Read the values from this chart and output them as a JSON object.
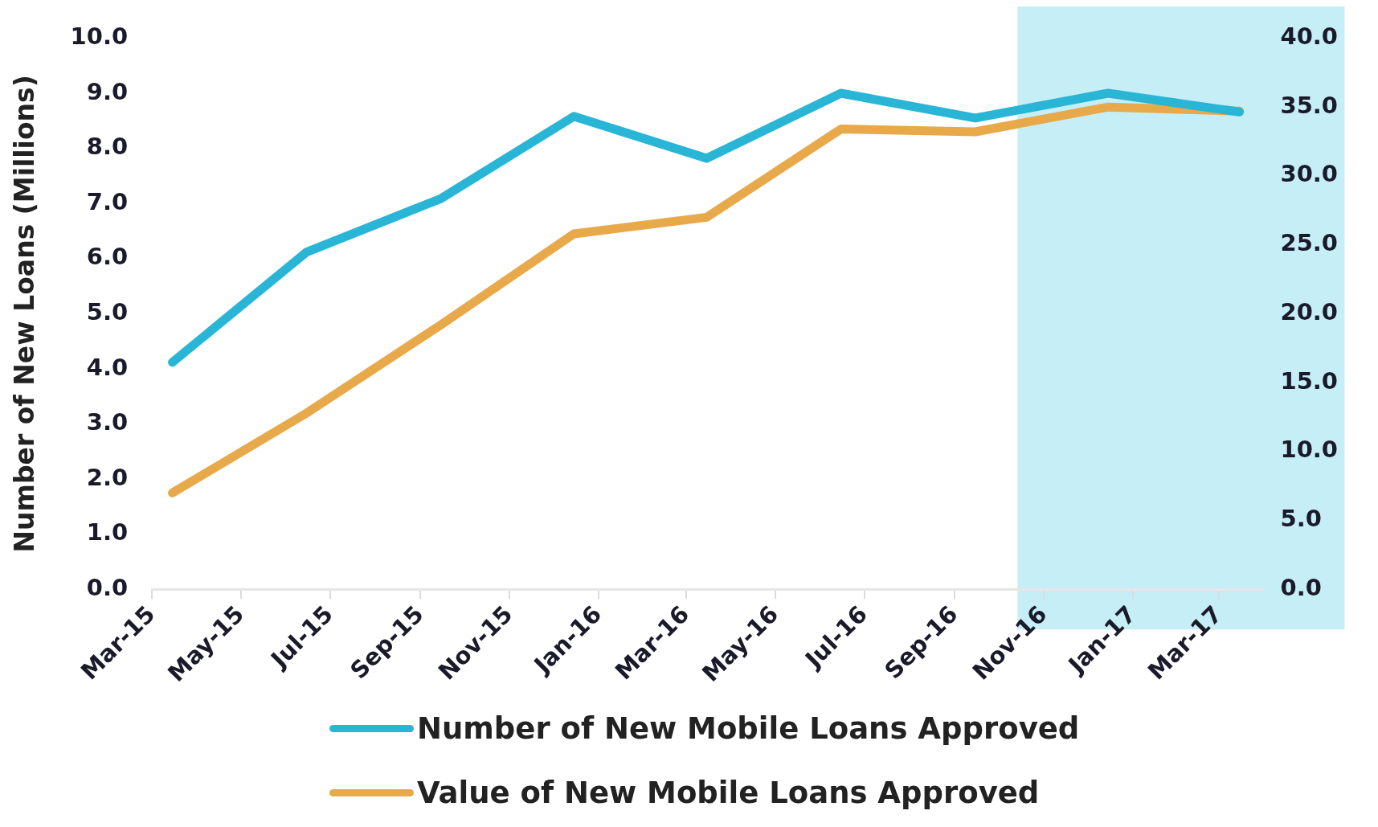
{
  "chart_data": {
    "type": "line",
    "ylabel": "Number of New Loans (Millions)",
    "x": [
      "2015-03-15",
      "2015-06-15",
      "2015-09-15",
      "2015-12-15",
      "2016-03-15",
      "2016-06-15",
      "2016-09-15",
      "2016-12-15",
      "2017-03-15"
    ],
    "series": [
      {
        "name": "Number of New Mobile Loans Approved",
        "color": "#29b6d6",
        "values": [
          4.12,
          6.12,
          7.09,
          8.58,
          7.82,
          9.0,
          8.55,
          9.0,
          8.66
        ]
      },
      {
        "name": "Value of New Mobile Loans Approved",
        "color": "#e8a94a",
        "axis": "y2",
        "values": [
          7.0,
          12.8,
          19.2,
          25.8,
          27.0,
          33.4,
          33.2,
          35.0,
          34.7
        ]
      }
    ],
    "xlim": [
      "2015-03-01",
      "2017-04-01"
    ],
    "xticks": [
      {
        "value": "2015-03-01",
        "label": "Mar-15"
      },
      {
        "value": "2015-05-01",
        "label": "May-15"
      },
      {
        "value": "2015-07-01",
        "label": "Jul-15"
      },
      {
        "value": "2015-09-01",
        "label": "Sep-15"
      },
      {
        "value": "2015-11-01",
        "label": "Nov-15"
      },
      {
        "value": "2016-01-01",
        "label": "Jan-16"
      },
      {
        "value": "2016-03-01",
        "label": "Mar-16"
      },
      {
        "value": "2016-05-01",
        "label": "May-16"
      },
      {
        "value": "2016-07-01",
        "label": "Jul-16"
      },
      {
        "value": "2016-09-01",
        "label": "Sep-16"
      },
      {
        "value": "2016-11-01",
        "label": "Nov-16"
      },
      {
        "value": "2017-01-01",
        "label": "Jan-17"
      },
      {
        "value": "2017-03-01",
        "label": "Mar-17"
      }
    ],
    "ylim": [
      0,
      10
    ],
    "yticks": [
      {
        "value": 0,
        "label": "0.0"
      },
      {
        "value": 1,
        "label": "1.0"
      },
      {
        "value": 2,
        "label": "2.0"
      },
      {
        "value": 3,
        "label": "3.0"
      },
      {
        "value": 4,
        "label": "4.0"
      },
      {
        "value": 5,
        "label": "5.0"
      },
      {
        "value": 6,
        "label": "6.0"
      },
      {
        "value": 7,
        "label": "7.0"
      },
      {
        "value": 8,
        "label": "8.0"
      },
      {
        "value": 9,
        "label": "9.0"
      },
      {
        "value": 10,
        "label": "10.0"
      }
    ],
    "y2lim": [
      0,
      40
    ],
    "y2ticks": [
      {
        "value": 0,
        "label": "0.0"
      },
      {
        "value": 5,
        "label": "5.0"
      },
      {
        "value": 10,
        "label": "10.0"
      },
      {
        "value": 15,
        "label": "15.0"
      },
      {
        "value": 20,
        "label": "20.0"
      },
      {
        "value": 25,
        "label": "25.0"
      },
      {
        "value": 30,
        "label": "30.0"
      },
      {
        "value": 35,
        "label": "35.0"
      },
      {
        "value": 40,
        "label": "40.0"
      }
    ],
    "bands": [
      {
        "axis": "x",
        "from": "2016-10-14",
        "to": "2017-04-01",
        "color": "#c6eef6"
      }
    ],
    "grid": false,
    "legend": "bottom",
    "marker": "none",
    "line_style": "solid"
  }
}
